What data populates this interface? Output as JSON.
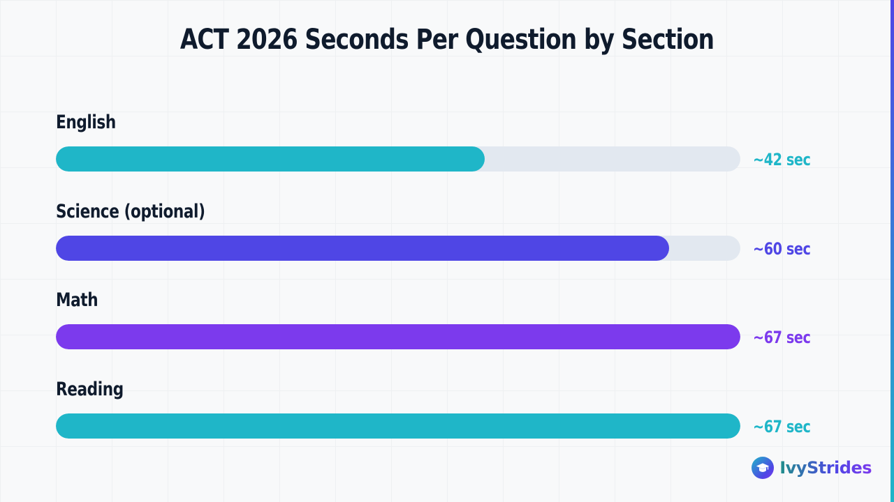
{
  "chart_data": {
    "type": "bar",
    "orientation": "horizontal",
    "title": "ACT 2026 Seconds Per Question by Section",
    "xlabel": "",
    "ylabel": "",
    "xlim": [
      0,
      67
    ],
    "grid": true,
    "categories": [
      "English",
      "Science (optional)",
      "Math",
      "Reading"
    ],
    "values": [
      42,
      60,
      67,
      67
    ],
    "value_labels": [
      "~42 sec",
      "~60 sec",
      "~67 sec",
      "~67 sec"
    ],
    "colors": [
      "#1fb6c8",
      "#4f46e5",
      "#7c3aed",
      "#1fb6c8"
    ],
    "track_color": "#e2e8f0"
  },
  "brand": {
    "name": "IvyStrides",
    "icon": "graduation-cap-icon"
  }
}
